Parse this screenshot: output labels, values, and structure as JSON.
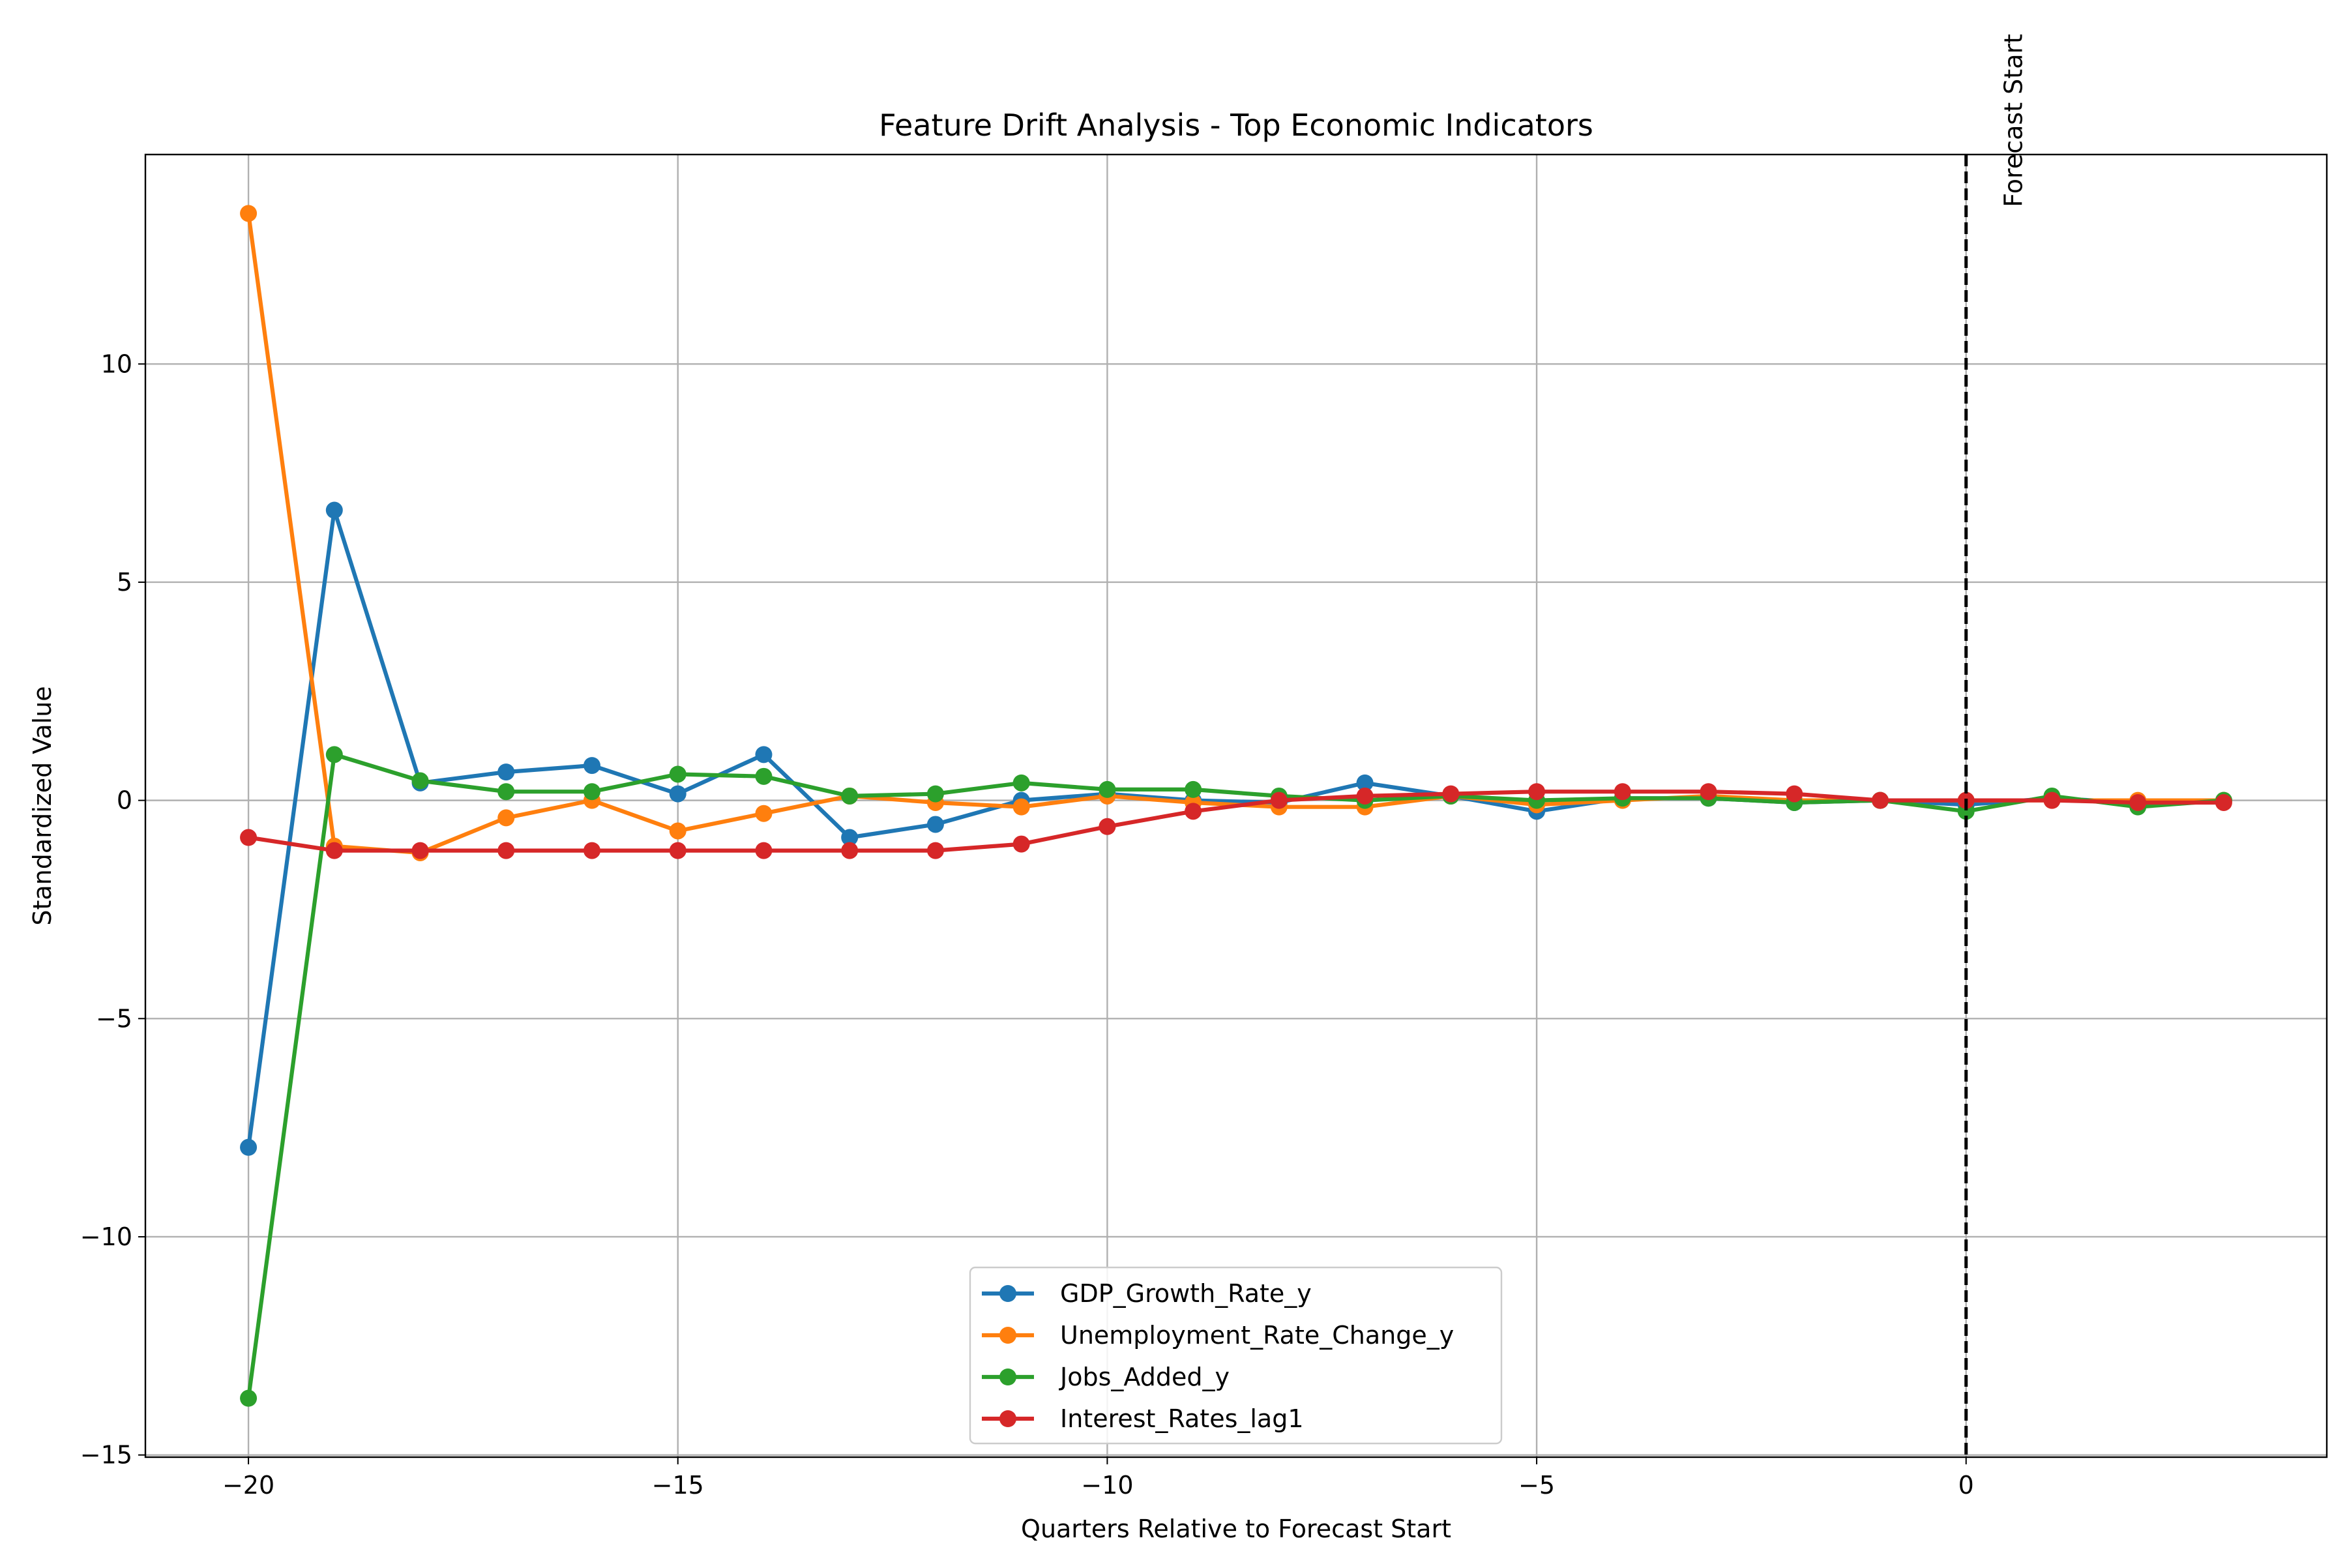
{
  "chart_data": {
    "type": "line",
    "title": "Feature Drift Analysis - Top Economic Indicators",
    "xlabel": "Quarters Relative to Forecast Start",
    "ylabel": "Standardized Value",
    "xlim": [
      -21.2,
      4.2
    ],
    "ylim": [
      -15.05,
      14.8
    ],
    "xticks": [
      -20,
      -15,
      -10,
      -5,
      0
    ],
    "xtick_labels": [
      "−20",
      "−15",
      "−10",
      "−5",
      "0"
    ],
    "yticks": [
      -15,
      -10,
      -5,
      0,
      5,
      10
    ],
    "ytick_labels": [
      "−15",
      "−10",
      "−5",
      "0",
      "5",
      "10"
    ],
    "grid": true,
    "legend_position": "lower-center",
    "x": [
      -20,
      -19,
      -18,
      -17,
      -16,
      -15,
      -14,
      -13,
      -12,
      -11,
      -10,
      -9,
      -8,
      -7,
      -6,
      -5,
      -4,
      -3,
      -2,
      -1,
      0,
      1,
      2,
      3
    ],
    "series": [
      {
        "name": "GDP_Growth_Rate_y",
        "color": "#1f77b4",
        "values": [
          -7.95,
          6.65,
          0.4,
          0.65,
          0.8,
          0.15,
          1.05,
          -0.85,
          -0.55,
          0.0,
          0.15,
          0.0,
          -0.05,
          0.4,
          0.1,
          -0.25,
          0.05,
          0.05,
          -0.05,
          0.0,
          -0.1,
          0.05,
          -0.05,
          0.0
        ]
      },
      {
        "name": "Unemployment_Rate_Change_y",
        "color": "#ff7f0e",
        "values": [
          13.45,
          -1.05,
          -1.2,
          -0.4,
          0.0,
          -0.7,
          -0.3,
          0.1,
          -0.05,
          -0.15,
          0.1,
          -0.05,
          -0.15,
          -0.15,
          0.1,
          -0.1,
          0.0,
          0.1,
          0.0,
          0.0,
          0.0,
          0.0,
          0.0,
          0.0
        ]
      },
      {
        "name": "Jobs_Added_y",
        "color": "#2ca02c",
        "values": [
          -13.7,
          1.05,
          0.45,
          0.2,
          0.2,
          0.6,
          0.55,
          0.1,
          0.15,
          0.4,
          0.25,
          0.25,
          0.1,
          0.0,
          0.1,
          0.0,
          0.05,
          0.05,
          -0.05,
          0.0,
          -0.25,
          0.1,
          -0.15,
          0.0
        ]
      },
      {
        "name": "Interest_Rates_lag1",
        "color": "#d62728",
        "values": [
          -0.85,
          -1.15,
          -1.15,
          -1.15,
          -1.15,
          -1.15,
          -1.15,
          -1.15,
          -1.15,
          -1.0,
          -0.6,
          -0.25,
          0.0,
          0.1,
          0.15,
          0.2,
          0.2,
          0.2,
          0.15,
          0.0,
          0.0,
          0.0,
          -0.05,
          -0.05
        ]
      }
    ],
    "annotations": [
      {
        "text": "Forecast Start",
        "x": 0,
        "style": "vertical dashed line"
      }
    ]
  }
}
